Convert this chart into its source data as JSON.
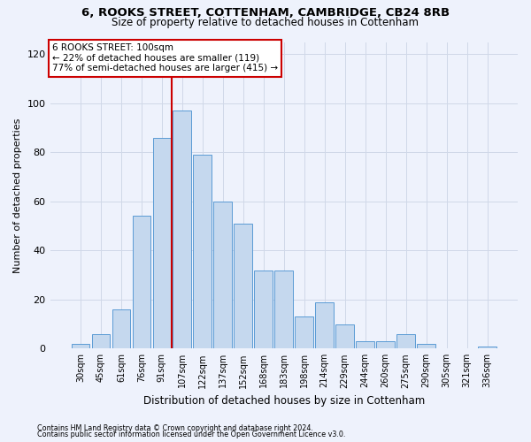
{
  "title_line1": "6, ROOKS STREET, COTTENHAM, CAMBRIDGE, CB24 8RB",
  "title_line2": "Size of property relative to detached houses in Cottenham",
  "xlabel": "Distribution of detached houses by size in Cottenham",
  "ylabel": "Number of detached properties",
  "footnote1": "Contains HM Land Registry data © Crown copyright and database right 2024.",
  "footnote2": "Contains public sector information licensed under the Open Government Licence v3.0.",
  "bar_labels": [
    "30sqm",
    "45sqm",
    "61sqm",
    "76sqm",
    "91sqm",
    "107sqm",
    "122sqm",
    "137sqm",
    "152sqm",
    "168sqm",
    "183sqm",
    "198sqm",
    "214sqm",
    "229sqm",
    "244sqm",
    "260sqm",
    "275sqm",
    "290sqm",
    "305sqm",
    "321sqm",
    "336sqm"
  ],
  "bar_values": [
    2,
    6,
    16,
    54,
    86,
    97,
    79,
    60,
    51,
    32,
    32,
    13,
    19,
    10,
    3,
    3,
    6,
    2,
    0,
    0,
    1
  ],
  "bar_color": "#c5d8ee",
  "bar_edge_color": "#5b9bd5",
  "ylim": [
    0,
    125
  ],
  "yticks": [
    0,
    20,
    40,
    60,
    80,
    100,
    120
  ],
  "annotation_line1": "6 ROOKS STREET: 100sqm",
  "annotation_line2": "← 22% of detached houses are smaller (119)",
  "annotation_line3": "77% of semi-detached houses are larger (415) →",
  "vline_x": 4.5,
  "vline_color": "#cc0000",
  "annotation_box_facecolor": "#ffffff",
  "annotation_box_edgecolor": "#cc0000",
  "background_color": "#eef2fc"
}
